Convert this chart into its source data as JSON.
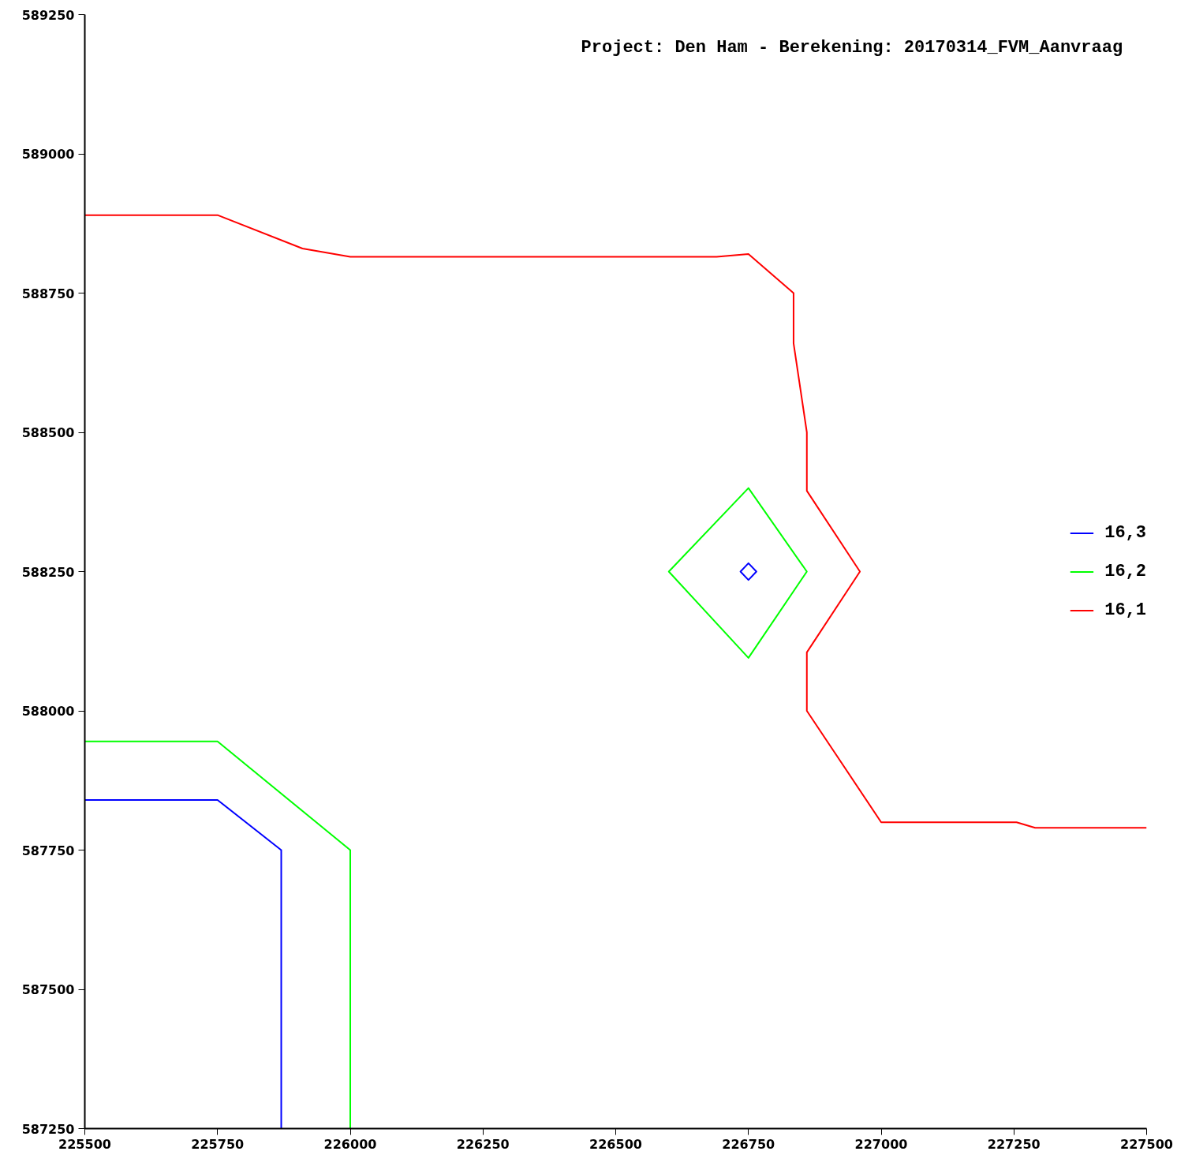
{
  "chart_data": {
    "type": "line",
    "title": "Project: Den Ham  -  Berekening: 20170314_FVM_Aanvraag",
    "xlim": [
      225500,
      227500
    ],
    "ylim": [
      587250,
      589250
    ],
    "xticks": [
      225500,
      225750,
      226000,
      226250,
      226500,
      226750,
      227000,
      227250,
      227500
    ],
    "yticks": [
      587250,
      587500,
      587750,
      588000,
      588250,
      588500,
      588750,
      589000,
      589250
    ],
    "legend": "right",
    "line_style": "solid",
    "series": [
      {
        "name": "16,3",
        "color": "#0000ff",
        "x": [
          225500,
          225750,
          225870,
          225870,
          null,
          226750,
          226765,
          226750,
          226735,
          226750,
          226765
        ],
        "values": [
          587840,
          587840,
          587750,
          587250,
          null,
          588265,
          588250,
          588235,
          588250,
          588265,
          588250
        ]
      },
      {
        "name": "16,2",
        "color": "#00ff00",
        "x": [
          225500,
          225750,
          226000,
          226000,
          null,
          226600,
          226750,
          226860,
          226750,
          226600,
          226750
        ],
        "values": [
          587945,
          587945,
          587750,
          587250,
          null,
          588250,
          588400,
          588250,
          588095,
          588250,
          588400
        ]
      },
      {
        "name": "16,1",
        "color": "#ff0000",
        "x": [
          225500,
          225750,
          225910,
          226000,
          226690,
          226750,
          226835,
          226835,
          226860,
          226860,
          226960,
          226860,
          226860,
          227000,
          227255,
          227290,
          227500
        ],
        "values": [
          588890,
          588890,
          588830,
          588815,
          588815,
          588820,
          588750,
          588660,
          588500,
          588395,
          588250,
          588105,
          588000,
          587800,
          587800,
          587790,
          587790
        ]
      }
    ]
  }
}
